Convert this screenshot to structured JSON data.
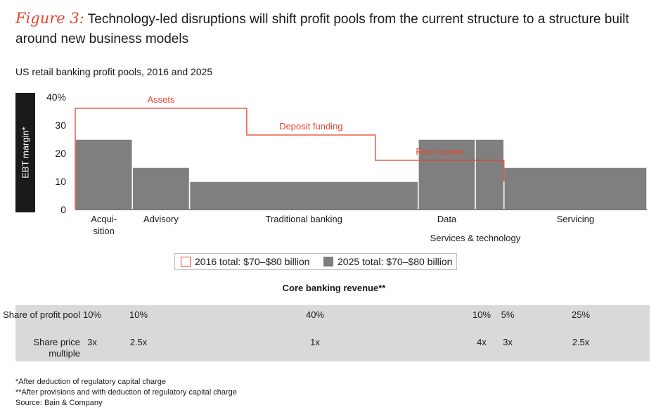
{
  "figure_label": "Figure 3:",
  "title": "Technology-led disruptions will shift profit pools from the current structure to a structure built around new business models",
  "subtitle": "US retail banking profit pools, 2016 and 2025",
  "chart_data": {
    "type": "bar",
    "ylabel": "EBT margin*",
    "ylim": [
      0,
      40
    ],
    "yticks": [
      "0",
      "10",
      "20",
      "30",
      "40%"
    ],
    "ytick_values": [
      0,
      10,
      20,
      30,
      40
    ],
    "series_2025": [
      {
        "label": "Acqui-\nsition",
        "share": 10,
        "margin": 25
      },
      {
        "label": "Advisory",
        "share": 10,
        "margin": 15
      },
      {
        "label": "Traditional banking",
        "share": 40,
        "margin": 10
      },
      {
        "label": "Data",
        "share": 10,
        "margin": 25
      },
      {
        "label": "",
        "share": 5,
        "margin": 25
      },
      {
        "label": "Servicing",
        "share": 25,
        "margin": 15
      }
    ],
    "extra_label": "Services & technology",
    "series_2016": [
      {
        "label": "Assets",
        "share": 30,
        "margin": 36
      },
      {
        "label": "Deposit funding",
        "share": 22.5,
        "margin": 26.5
      },
      {
        "label": "Fee income",
        "share": 22.5,
        "margin": 17.5
      }
    ],
    "colors": {
      "bar_2025": "#7f7f7f",
      "outline_2016": "#e8412c",
      "bar_stroke": "#ffffff"
    }
  },
  "legend": {
    "item_2016": "2016 total: $70–$80 billion",
    "item_2025": "2025 total: $70–$80 billion"
  },
  "core": {
    "title": "Core banking revenue**",
    "row1_label": "Share of profit pool",
    "row1": [
      "10%",
      "10%",
      "40%",
      "10%",
      "5%",
      "25%"
    ],
    "row2_label": "Share price multiple",
    "row2": [
      "3x",
      "2.5x",
      "1x",
      "4x",
      "3x",
      "2.5x"
    ]
  },
  "footnotes": [
    "*After deduction of regulatory capital charge",
    "**After provisions and with deduction of regulatory capital charge",
    "Source: Bain & Company"
  ]
}
